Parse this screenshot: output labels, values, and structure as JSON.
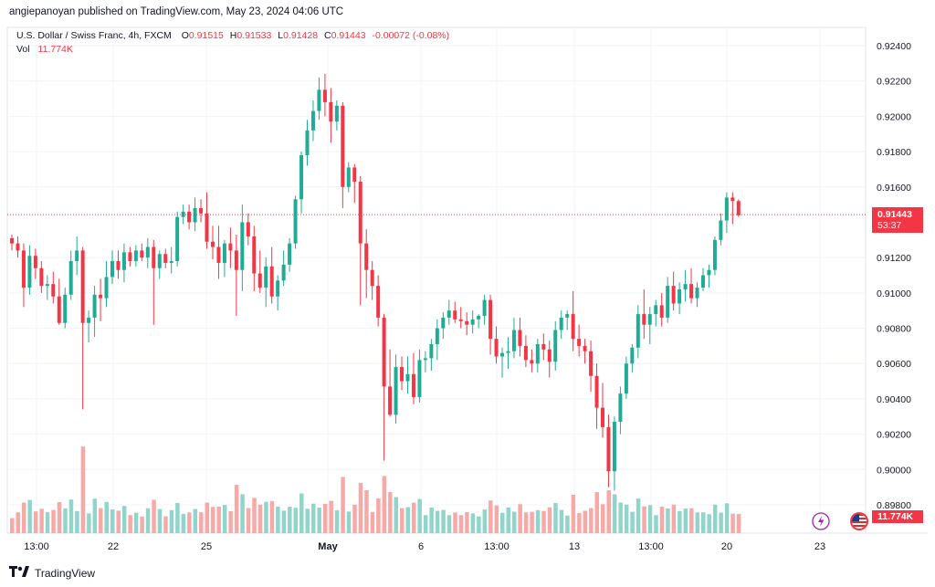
{
  "header": {
    "publisher": "angiepanoyan published on TradingView.com, May 23, 2024 04:06 UTC"
  },
  "legend": {
    "symbol": "U.S. Dollar / Swiss Franc, 4h, FXCM",
    "o_label": "O",
    "o_value": "0.91515",
    "h_label": "H",
    "h_value": "0.91533",
    "l_label": "L",
    "l_value": "0.91428",
    "c_label": "C",
    "c_value": "0.91443",
    "change": "-0.00072 (-0.08%)",
    "vol_label": "Vol",
    "vol_value": "11.774K"
  },
  "price_tag": {
    "price": "0.91443",
    "countdown": "53:37"
  },
  "vol_tag": "11.774K",
  "footer": {
    "brand": "TradingView"
  },
  "colors": {
    "up": "#22ab94",
    "down": "#f23645",
    "up_vol": "#91d5ca",
    "down_vol": "#f7a9a7"
  },
  "chart_data": {
    "type": "candlestick",
    "title": "U.S. Dollar / Swiss Franc, 4h, FXCM",
    "y_ticks": [
      "0.92400",
      "0.92200",
      "0.92000",
      "0.91800",
      "0.91600",
      "0.91200",
      "0.91000",
      "0.90800",
      "0.90600",
      "0.90400",
      "0.90200",
      "0.90000",
      "0.89800"
    ],
    "ylim": [
      0.8976,
      0.9253
    ],
    "x_ticks": [
      "13:00",
      "22",
      "25",
      "May",
      "6",
      "13:00",
      "13",
      "13:00",
      "20",
      "23"
    ],
    "current_price": 0.91443,
    "series": [
      {
        "name": "price",
        "ohlc": [
          [
            0.9131,
            0.9133,
            0.9124,
            0.9128
          ],
          [
            0.9128,
            0.9132,
            0.912,
            0.9124
          ],
          [
            0.9124,
            0.9128,
            0.9092,
            0.9103
          ],
          [
            0.9103,
            0.9127,
            0.9099,
            0.9121
          ],
          [
            0.9121,
            0.9125,
            0.9108,
            0.9114
          ],
          [
            0.9114,
            0.9118,
            0.91,
            0.9104
          ],
          [
            0.9104,
            0.911,
            0.9096,
            0.9105
          ],
          [
            0.9105,
            0.9112,
            0.9094,
            0.9098
          ],
          [
            0.9098,
            0.9108,
            0.9082,
            0.9083
          ],
          [
            0.9083,
            0.9103,
            0.908,
            0.9099
          ],
          [
            0.9099,
            0.9124,
            0.9096,
            0.9118
          ],
          [
            0.9118,
            0.9132,
            0.911,
            0.9124
          ],
          [
            0.9124,
            0.9126,
            0.9034,
            0.9083
          ],
          [
            0.9083,
            0.909,
            0.9072,
            0.9086
          ],
          [
            0.9086,
            0.9104,
            0.9075,
            0.9099
          ],
          [
            0.9099,
            0.9108,
            0.9084,
            0.9097
          ],
          [
            0.9097,
            0.9118,
            0.9092,
            0.9109
          ],
          [
            0.9109,
            0.9124,
            0.9105,
            0.9118
          ],
          [
            0.9118,
            0.9124,
            0.9108,
            0.9113
          ],
          [
            0.9113,
            0.9128,
            0.9106,
            0.9123
          ],
          [
            0.9123,
            0.9126,
            0.9115,
            0.9118
          ],
          [
            0.9118,
            0.9127,
            0.9115,
            0.9124
          ],
          [
            0.9124,
            0.9128,
            0.9118,
            0.912
          ],
          [
            0.912,
            0.9131,
            0.9114,
            0.9126
          ],
          [
            0.9126,
            0.913,
            0.9082,
            0.9114
          ],
          [
            0.9114,
            0.9124,
            0.9108,
            0.9122
          ],
          [
            0.9122,
            0.9125,
            0.9114,
            0.9117
          ],
          [
            0.9117,
            0.9126,
            0.9111,
            0.9118
          ],
          [
            0.9118,
            0.9146,
            0.9115,
            0.9143
          ],
          [
            0.9143,
            0.915,
            0.9139,
            0.9146
          ],
          [
            0.9146,
            0.915,
            0.9136,
            0.914
          ],
          [
            0.914,
            0.9154,
            0.9135,
            0.9148
          ],
          [
            0.9148,
            0.9153,
            0.914,
            0.9145
          ],
          [
            0.9145,
            0.9157,
            0.9125,
            0.9129
          ],
          [
            0.9129,
            0.9138,
            0.9119,
            0.9126
          ],
          [
            0.9126,
            0.9138,
            0.9108,
            0.9117
          ],
          [
            0.9117,
            0.913,
            0.9109,
            0.9128
          ],
          [
            0.9128,
            0.9137,
            0.9114,
            0.9124
          ],
          [
            0.9124,
            0.9133,
            0.9087,
            0.9113
          ],
          [
            0.9113,
            0.915,
            0.9101,
            0.914
          ],
          [
            0.914,
            0.9145,
            0.9127,
            0.9132
          ],
          [
            0.9132,
            0.9138,
            0.9101,
            0.9111
          ],
          [
            0.9111,
            0.9124,
            0.91,
            0.9103
          ],
          [
            0.9103,
            0.912,
            0.9092,
            0.9115
          ],
          [
            0.9115,
            0.9126,
            0.9094,
            0.9098
          ],
          [
            0.9098,
            0.911,
            0.909,
            0.9107
          ],
          [
            0.9107,
            0.9124,
            0.9104,
            0.9116
          ],
          [
            0.9116,
            0.9131,
            0.9112,
            0.9128
          ],
          [
            0.9128,
            0.9155,
            0.9125,
            0.9153
          ],
          [
            0.9153,
            0.918,
            0.9145,
            0.9178
          ],
          [
            0.9178,
            0.9198,
            0.9172,
            0.9192
          ],
          [
            0.9192,
            0.9209,
            0.9186,
            0.9203
          ],
          [
            0.9203,
            0.9222,
            0.9198,
            0.9215
          ],
          [
            0.9215,
            0.9224,
            0.92,
            0.9208
          ],
          [
            0.9208,
            0.9216,
            0.9185,
            0.9197
          ],
          [
            0.9197,
            0.9209,
            0.9192,
            0.9206
          ],
          [
            0.9206,
            0.9208,
            0.9148,
            0.916
          ],
          [
            0.916,
            0.9174,
            0.9157,
            0.9171
          ],
          [
            0.9171,
            0.9173,
            0.9151,
            0.9163
          ],
          [
            0.9163,
            0.9166,
            0.9093,
            0.9128
          ],
          [
            0.9128,
            0.9136,
            0.9097,
            0.9113
          ],
          [
            0.9113,
            0.9118,
            0.9096,
            0.9104
          ],
          [
            0.9104,
            0.911,
            0.9081,
            0.9086
          ],
          [
            0.9086,
            0.9088,
            0.9005,
            0.9047
          ],
          [
            0.9047,
            0.9068,
            0.903,
            0.9031
          ],
          [
            0.9031,
            0.9065,
            0.9026,
            0.9058
          ],
          [
            0.9058,
            0.9064,
            0.9045,
            0.905
          ],
          [
            0.905,
            0.9064,
            0.9043,
            0.9054
          ],
          [
            0.9054,
            0.9066,
            0.9037,
            0.9041
          ],
          [
            0.9041,
            0.9068,
            0.9038,
            0.9062
          ],
          [
            0.9062,
            0.9067,
            0.9055,
            0.9063
          ],
          [
            0.9063,
            0.9074,
            0.9056,
            0.9071
          ],
          [
            0.9071,
            0.9085,
            0.9062,
            0.908
          ],
          [
            0.908,
            0.9089,
            0.9074,
            0.9086
          ],
          [
            0.9086,
            0.9096,
            0.9082,
            0.909
          ],
          [
            0.909,
            0.9095,
            0.9083,
            0.9085
          ],
          [
            0.9085,
            0.9092,
            0.908,
            0.9084
          ],
          [
            0.9084,
            0.9089,
            0.9076,
            0.9082
          ],
          [
            0.9082,
            0.909,
            0.9077,
            0.9085
          ],
          [
            0.9085,
            0.9088,
            0.908,
            0.9087
          ],
          [
            0.9087,
            0.9099,
            0.9082,
            0.9096
          ],
          [
            0.9096,
            0.9099,
            0.9065,
            0.9074
          ],
          [
            0.9074,
            0.9081,
            0.906,
            0.9064
          ],
          [
            0.9064,
            0.9069,
            0.9052,
            0.9066
          ],
          [
            0.9066,
            0.9075,
            0.9057,
            0.9067
          ],
          [
            0.9067,
            0.9086,
            0.9063,
            0.9079
          ],
          [
            0.9079,
            0.9086,
            0.9064,
            0.907
          ],
          [
            0.907,
            0.9076,
            0.9058,
            0.9062
          ],
          [
            0.9062,
            0.9068,
            0.9055,
            0.906
          ],
          [
            0.906,
            0.9074,
            0.9055,
            0.9071
          ],
          [
            0.9071,
            0.9077,
            0.9062,
            0.9068
          ],
          [
            0.9068,
            0.9073,
            0.9052,
            0.9061
          ],
          [
            0.9061,
            0.9084,
            0.9056,
            0.9079
          ],
          [
            0.9079,
            0.909,
            0.9074,
            0.9086
          ],
          [
            0.9086,
            0.909,
            0.9079,
            0.9088
          ],
          [
            0.9088,
            0.9101,
            0.9067,
            0.9074
          ],
          [
            0.9074,
            0.9082,
            0.9064,
            0.907
          ],
          [
            0.907,
            0.9074,
            0.906,
            0.9067
          ],
          [
            0.9067,
            0.9073,
            0.9044,
            0.9053
          ],
          [
            0.9053,
            0.906,
            0.9023,
            0.9035
          ],
          [
            0.9035,
            0.9049,
            0.9018,
            0.9024
          ],
          [
            0.9024,
            0.9031,
            0.899,
            0.8999
          ],
          [
            0.8999,
            0.903,
            0.8988,
            0.9027
          ],
          [
            0.9027,
            0.9047,
            0.902,
            0.9043
          ],
          [
            0.9043,
            0.9064,
            0.904,
            0.906
          ],
          [
            0.906,
            0.9071,
            0.9055,
            0.9069
          ],
          [
            0.9069,
            0.9093,
            0.9063,
            0.9088
          ],
          [
            0.9088,
            0.9102,
            0.9074,
            0.9082
          ],
          [
            0.9082,
            0.9092,
            0.9071,
            0.9088
          ],
          [
            0.9088,
            0.9096,
            0.9081,
            0.9093
          ],
          [
            0.9093,
            0.91,
            0.9081,
            0.9086
          ],
          [
            0.9086,
            0.9109,
            0.9083,
            0.9104
          ],
          [
            0.9104,
            0.9112,
            0.909,
            0.9094
          ],
          [
            0.9094,
            0.9106,
            0.9088,
            0.9102
          ],
          [
            0.9102,
            0.9113,
            0.9095,
            0.9105
          ],
          [
            0.9105,
            0.9114,
            0.9094,
            0.9097
          ],
          [
            0.9097,
            0.9106,
            0.9092,
            0.9103
          ],
          [
            0.9103,
            0.9114,
            0.9101,
            0.911
          ],
          [
            0.911,
            0.9116,
            0.9103,
            0.9113
          ],
          [
            0.9113,
            0.9132,
            0.911,
            0.913
          ],
          [
            0.913,
            0.9145,
            0.9127,
            0.9141
          ],
          [
            0.9141,
            0.9157,
            0.9134,
            0.9154
          ],
          [
            0.9154,
            0.9157,
            0.9139,
            0.9152
          ],
          [
            0.9152,
            0.9153,
            0.9143,
            0.9144
          ]
        ]
      },
      {
        "name": "Vol",
        "scale_max": 1
      }
    ]
  }
}
